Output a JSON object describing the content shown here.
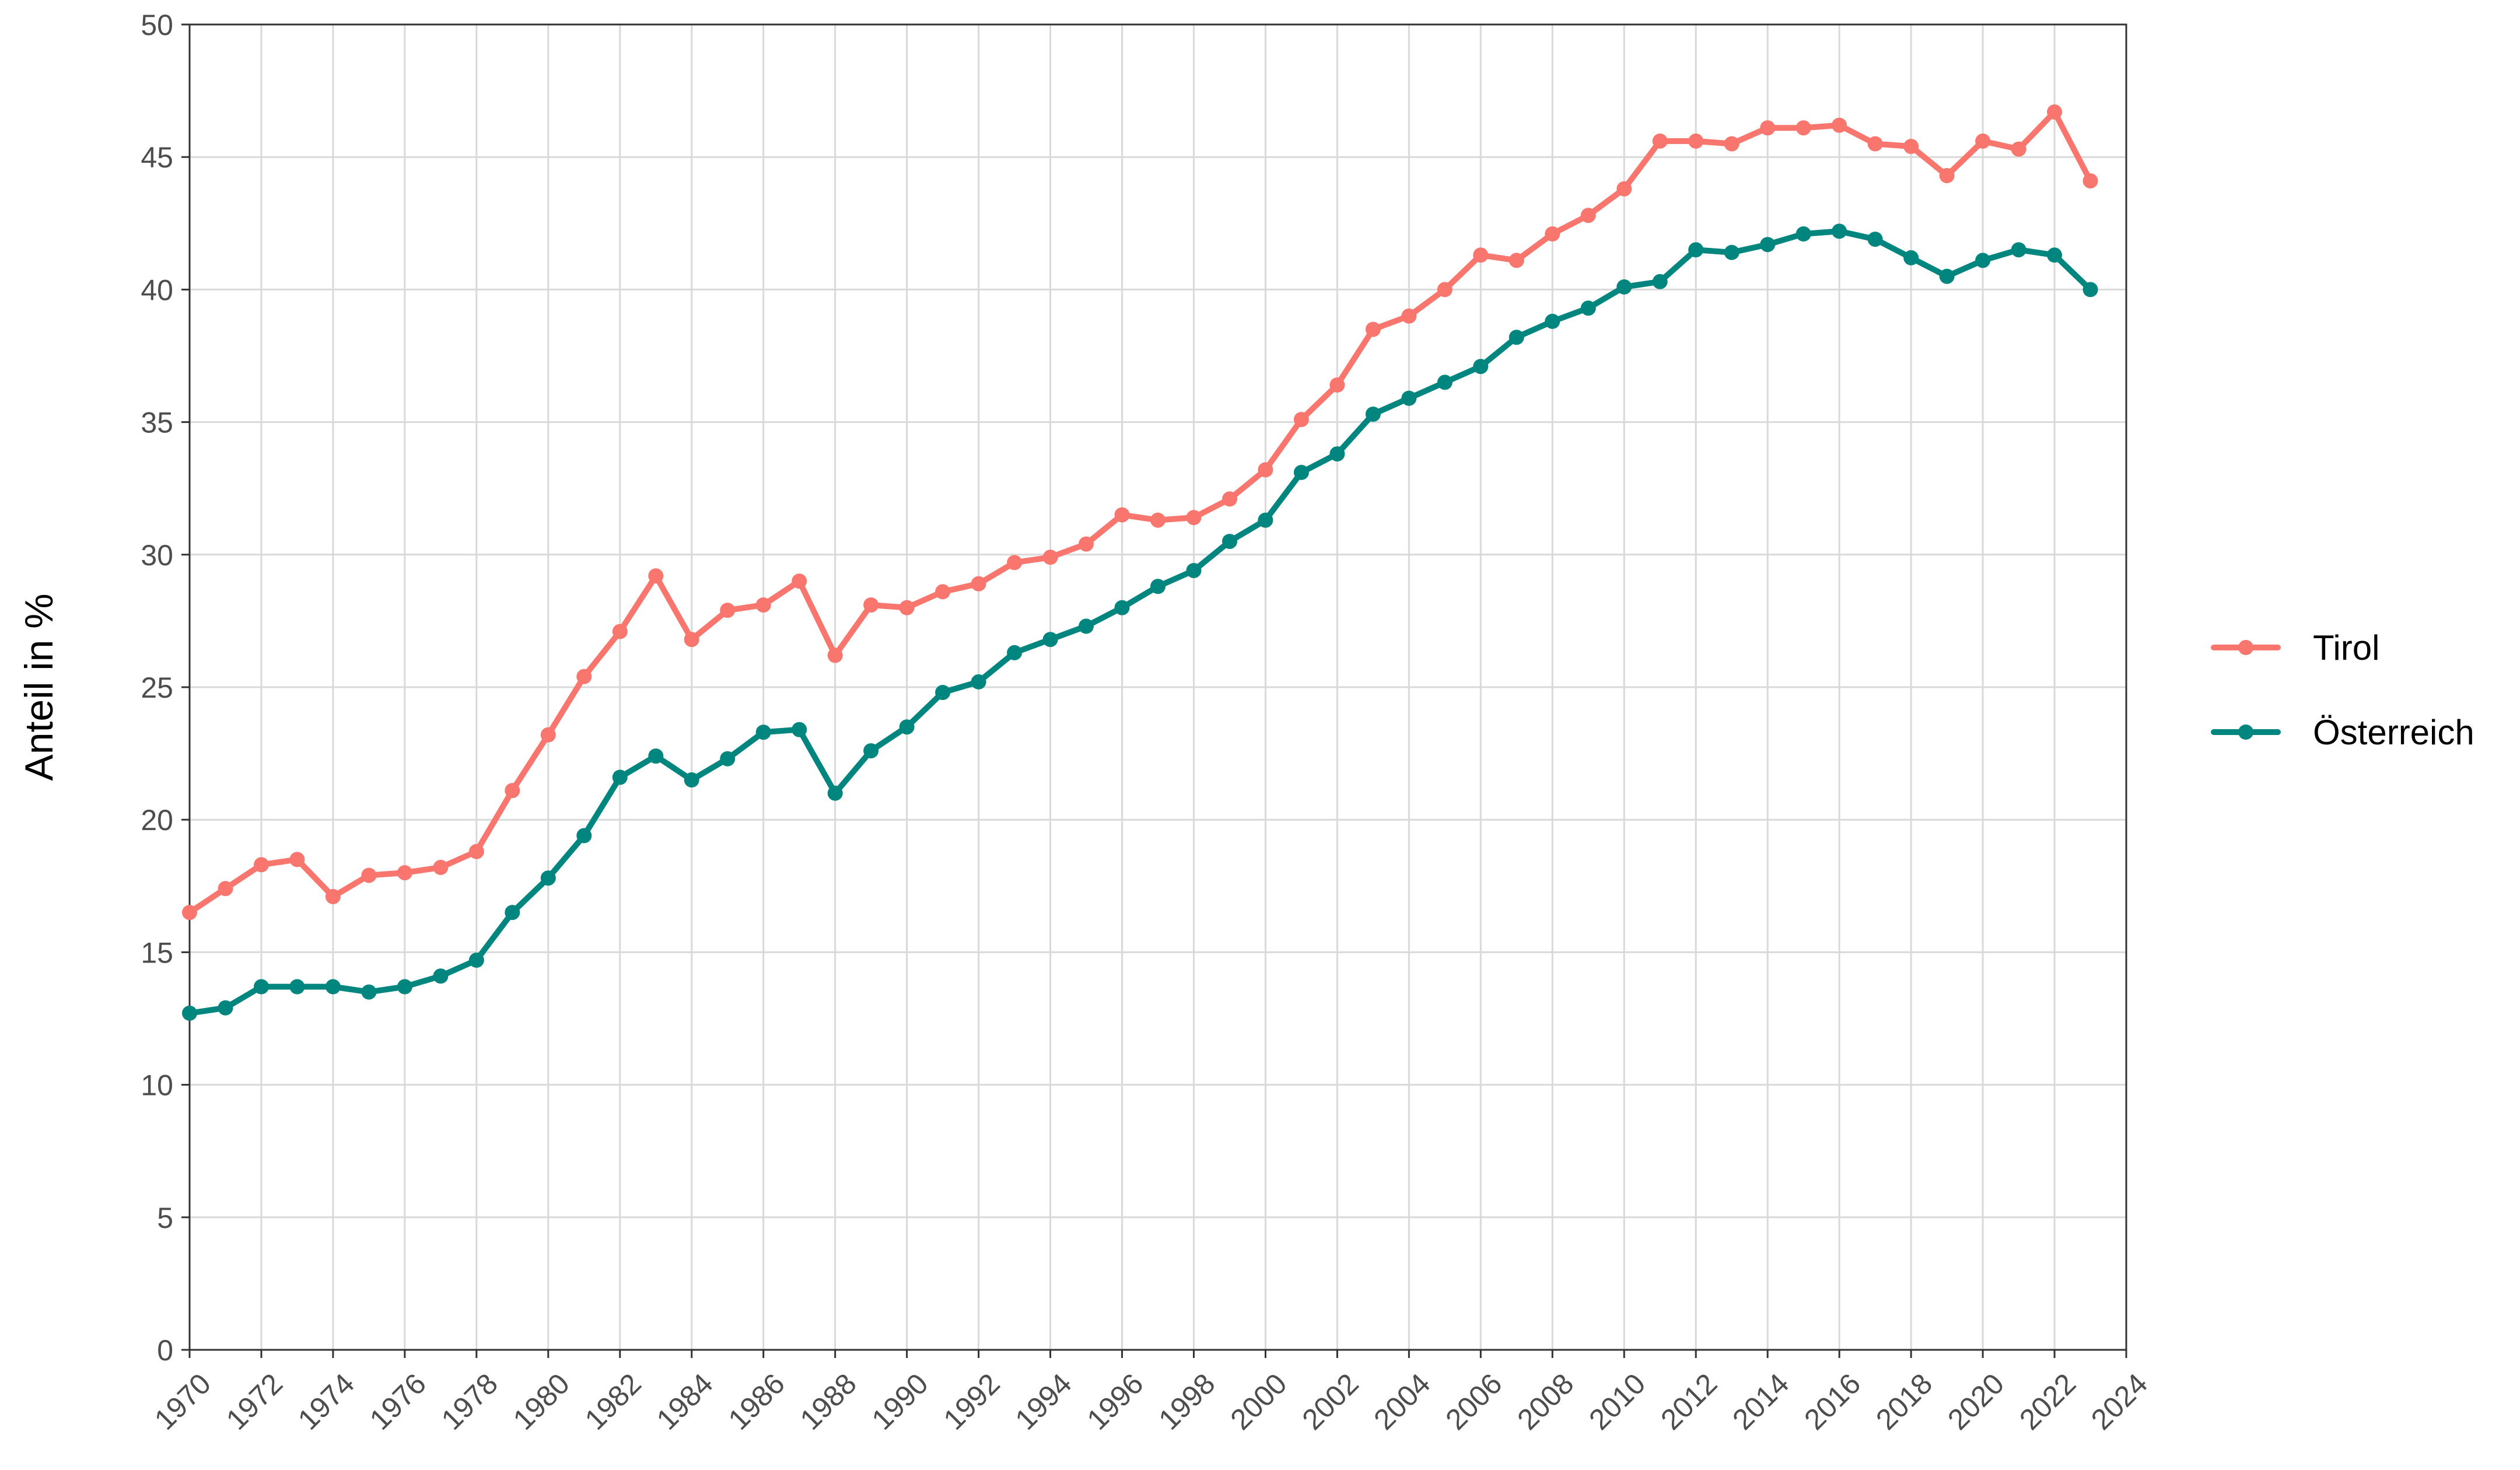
{
  "chart_data": {
    "type": "line",
    "title": "",
    "xlabel": "",
    "ylabel": "Anteil in %",
    "xlim": [
      1970,
      2024
    ],
    "ylim": [
      0,
      50
    ],
    "x_ticks": [
      1970,
      1972,
      1974,
      1976,
      1978,
      1980,
      1982,
      1984,
      1986,
      1988,
      1990,
      1992,
      1994,
      1996,
      1998,
      2000,
      2002,
      2004,
      2006,
      2008,
      2010,
      2012,
      2014,
      2016,
      2018,
      2020,
      2022,
      2024
    ],
    "y_ticks": [
      0,
      5,
      10,
      15,
      20,
      25,
      30,
      35,
      40,
      45,
      50
    ],
    "grid": true,
    "legend_position": "right",
    "x": [
      1970,
      1971,
      1972,
      1973,
      1974,
      1975,
      1976,
      1977,
      1978,
      1979,
      1980,
      1981,
      1982,
      1983,
      1984,
      1985,
      1986,
      1987,
      1988,
      1989,
      1990,
      1991,
      1992,
      1993,
      1994,
      1995,
      1996,
      1997,
      1998,
      1999,
      2000,
      2001,
      2002,
      2003,
      2004,
      2005,
      2006,
      2007,
      2008,
      2009,
      2010,
      2011,
      2012,
      2013,
      2014,
      2015,
      2016,
      2017,
      2018,
      2019,
      2020,
      2021,
      2022,
      2023
    ],
    "series": [
      {
        "name": "Tirol",
        "color": "#F8766D",
        "values": [
          16.5,
          17.4,
          18.3,
          18.5,
          17.1,
          17.9,
          18.0,
          18.2,
          18.8,
          21.1,
          23.2,
          25.4,
          27.1,
          29.2,
          26.8,
          27.9,
          28.1,
          29.0,
          26.2,
          28.1,
          28.0,
          28.6,
          28.9,
          29.7,
          29.9,
          30.4,
          31.5,
          31.3,
          31.4,
          32.1,
          33.2,
          35.1,
          36.4,
          38.5,
          39.0,
          40.0,
          41.3,
          41.1,
          42.1,
          42.8,
          43.8,
          45.6,
          45.6,
          45.5,
          46.1,
          46.1,
          46.2,
          45.5,
          45.4,
          44.3,
          45.6,
          45.3,
          46.7,
          44.1
        ]
      },
      {
        "name": "Österreich",
        "color": "#00857F",
        "values": [
          12.7,
          12.9,
          13.7,
          13.7,
          13.7,
          13.5,
          13.7,
          14.1,
          14.7,
          16.5,
          17.8,
          19.4,
          21.6,
          22.4,
          21.5,
          22.3,
          23.3,
          23.4,
          21.0,
          22.6,
          23.5,
          24.8,
          25.2,
          26.3,
          26.8,
          27.3,
          28.0,
          28.8,
          29.4,
          30.5,
          31.3,
          33.1,
          33.8,
          35.3,
          35.9,
          36.5,
          37.1,
          38.2,
          38.8,
          39.3,
          40.1,
          40.3,
          41.5,
          41.4,
          41.7,
          42.1,
          42.2,
          41.9,
          41.2,
          40.5,
          41.1,
          41.5,
          41.3,
          40.0
        ]
      }
    ]
  }
}
